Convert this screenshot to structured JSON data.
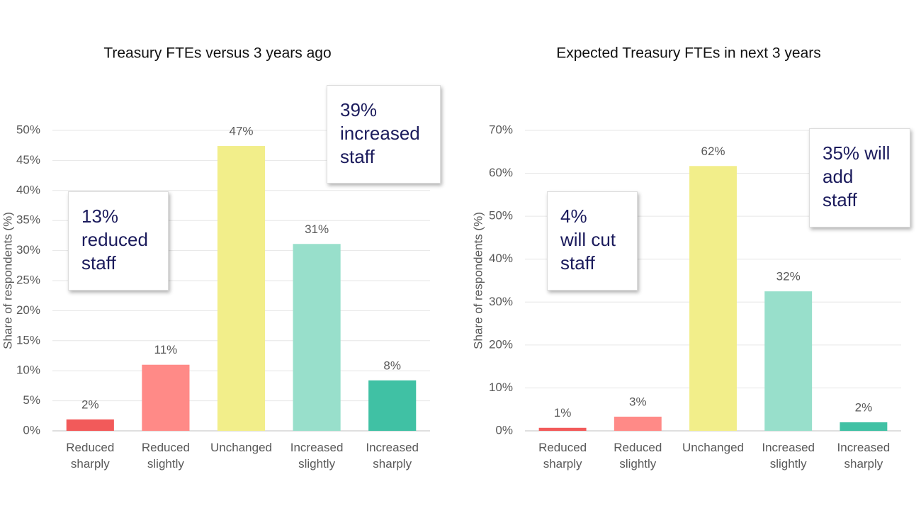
{
  "chart_data": [
    {
      "type": "bar",
      "title": "Treasury FTEs versus 3 years ago",
      "y_label": "Share of respondents (%)",
      "categories": [
        "Reduced\nsharply",
        "Reduced\nslightly",
        "Unchanged",
        "Increased\nslightly",
        "Increased\nsharply"
      ],
      "values": [
        1.9,
        11,
        47.4,
        31.1,
        8.4
      ],
      "value_labels": [
        "2%",
        "11%",
        "47%",
        "31%",
        "8%"
      ],
      "colors": [
        "#f25a5a",
        "#ff8a87",
        "#f2ee8a",
        "#98dfcb",
        "#40c1a4"
      ],
      "ylim": [
        0,
        50
      ],
      "yticks": [
        {
          "value": 0,
          "label": "0%"
        },
        {
          "value": 5,
          "label": "5%"
        },
        {
          "value": 10,
          "label": "10%"
        },
        {
          "value": 15,
          "label": "15%"
        },
        {
          "value": 20,
          "label": "20%"
        },
        {
          "value": 25,
          "label": "25%"
        },
        {
          "value": 30,
          "label": "30%"
        },
        {
          "value": 35,
          "label": "35%"
        },
        {
          "value": 40,
          "label": "40%"
        },
        {
          "value": 45,
          "label": "45%"
        },
        {
          "value": 50,
          "label": "50%"
        }
      ],
      "grid": true,
      "annotations": [
        "13%\nreduced\nstaff",
        "39%\nincreased\nstaff"
      ]
    },
    {
      "type": "bar",
      "title": "Expected Treasury FTEs in next 3 years",
      "y_label": "Share of respondents (%)",
      "categories": [
        "Reduced\nsharply",
        "Reduced\nslightly",
        "Unchanged",
        "Increased\nslightly",
        "Increased\nsharply"
      ],
      "values": [
        0.7,
        3.3,
        61.7,
        32.5,
        2.0
      ],
      "value_labels": [
        "1%",
        "3%",
        "62%",
        "32%",
        "2%"
      ],
      "colors": [
        "#f25a5a",
        "#ff8a87",
        "#f2ee8a",
        "#98dfcb",
        "#40c1a4"
      ],
      "ylim": [
        0,
        70
      ],
      "yticks": [
        {
          "value": 0,
          "label": "0%"
        },
        {
          "value": 10,
          "label": "10%"
        },
        {
          "value": 20,
          "label": "20%"
        },
        {
          "value": 30,
          "label": "30%"
        },
        {
          "value": 40,
          "label": "40%"
        },
        {
          "value": 50,
          "label": "50%"
        },
        {
          "value": 60,
          "label": "60%"
        },
        {
          "value": 70,
          "label": "70%"
        }
      ],
      "grid": true,
      "annotations": [
        "4%\nwill cut\nstaff",
        "35% will\nadd\nstaff"
      ]
    }
  ]
}
